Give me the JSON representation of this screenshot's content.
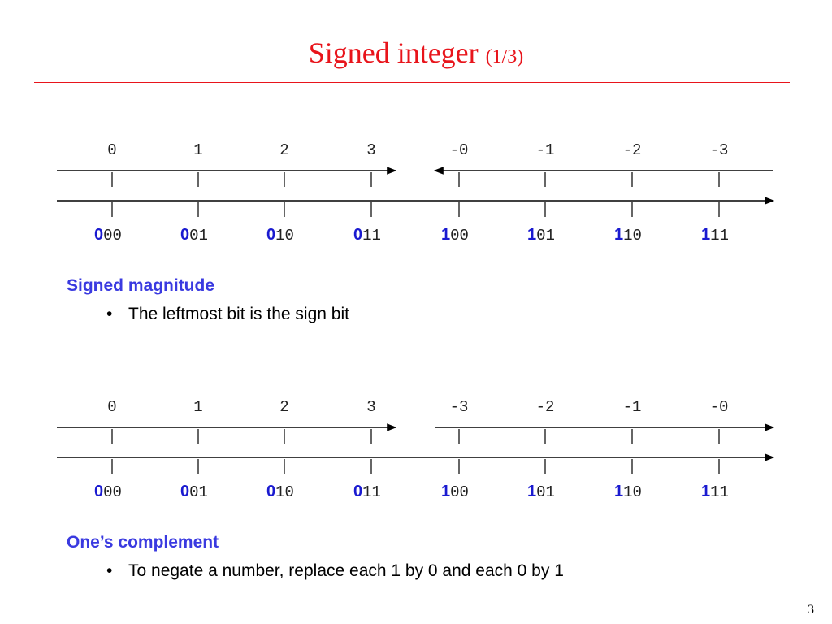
{
  "title": "Signed integer",
  "title_note": "(1/3)",
  "sections": [
    {
      "labels": [
        "0",
        "1",
        "2",
        "3",
        "-0",
        "-1",
        "-2",
        "-3"
      ],
      "codes": [
        {
          "sign": "0",
          "rest": "00"
        },
        {
          "sign": "0",
          "rest": "01"
        },
        {
          "sign": "0",
          "rest": "10"
        },
        {
          "sign": "0",
          "rest": "11"
        },
        {
          "sign": "1",
          "rest": "00"
        },
        {
          "sign": "1",
          "rest": "01"
        },
        {
          "sign": "1",
          "rest": "10"
        },
        {
          "sign": "1",
          "rest": "11"
        }
      ],
      "heading": "Signed magnitude",
      "bullet": "The leftmost bit is the sign bit"
    },
    {
      "labels": [
        "0",
        "1",
        "2",
        "3",
        "-3",
        "-2",
        "-1",
        "-0"
      ],
      "codes": [
        {
          "sign": "0",
          "rest": "00"
        },
        {
          "sign": "0",
          "rest": "01"
        },
        {
          "sign": "0",
          "rest": "10"
        },
        {
          "sign": "0",
          "rest": "11"
        },
        {
          "sign": "1",
          "rest": "00"
        },
        {
          "sign": "1",
          "rest": "01"
        },
        {
          "sign": "1",
          "rest": "10"
        },
        {
          "sign": "1",
          "rest": "11"
        }
      ],
      "heading": "One’s complement",
      "bullet": "To negate a number, replace each 1 by 0 and each 0 by 1"
    }
  ],
  "page_number": "3"
}
